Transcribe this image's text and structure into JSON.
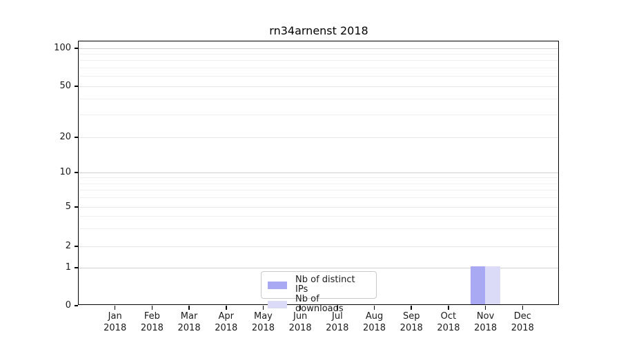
{
  "chart_data": {
    "type": "bar",
    "title": "rn34arnenst 2018",
    "categories": [
      {
        "label": "Jan",
        "sublabel": "2018"
      },
      {
        "label": "Feb",
        "sublabel": "2018"
      },
      {
        "label": "Mar",
        "sublabel": "2018"
      },
      {
        "label": "Apr",
        "sublabel": "2018"
      },
      {
        "label": "May",
        "sublabel": "2018"
      },
      {
        "label": "Jun",
        "sublabel": "2018"
      },
      {
        "label": "Jul",
        "sublabel": "2018"
      },
      {
        "label": "Aug",
        "sublabel": "2018"
      },
      {
        "label": "Sep",
        "sublabel": "2018"
      },
      {
        "label": "Oct",
        "sublabel": "2018"
      },
      {
        "label": "Nov",
        "sublabel": "2018"
      },
      {
        "label": "Dec",
        "sublabel": "2018"
      }
    ],
    "series": [
      {
        "name": "Nb of distinct IPs",
        "color": "#a9a9f3",
        "values": [
          0,
          0,
          0,
          0,
          0,
          0,
          0,
          0,
          0,
          0,
          1,
          0
        ]
      },
      {
        "name": "Nb of downloads",
        "color": "#dbdbf8",
        "values": [
          0,
          0,
          0,
          0,
          0,
          0,
          0,
          0,
          0,
          0,
          1,
          0
        ]
      }
    ],
    "y_axis": {
      "scale": "symlog",
      "major_ticks": [
        0,
        1,
        2,
        5,
        10,
        20,
        50,
        100
      ],
      "minor_ticks": [
        3,
        4,
        6,
        7,
        8,
        9,
        30,
        40,
        60,
        70,
        80,
        90
      ],
      "ylim": [
        0,
        110
      ]
    },
    "xlabel": "",
    "ylabel": "",
    "legend": {
      "position": "lower-center",
      "entries": [
        "Nb of distinct IPs",
        "Nb of downloads"
      ]
    },
    "grid": "horizontal"
  },
  "colors": {
    "background": "#ffffff",
    "axis": "#000000",
    "text": "#1a1a1a",
    "grid_decade": "#cfcfcf",
    "grid_labeled": "#e7e7e7",
    "grid_minor": "#efefef",
    "legend_border": "#c9c9c9"
  }
}
